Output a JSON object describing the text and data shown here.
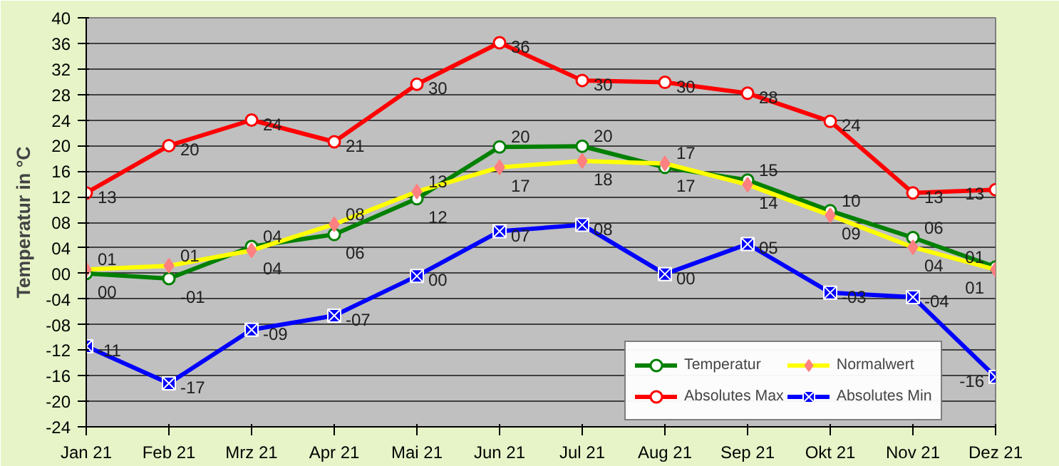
{
  "chart_data": {
    "type": "line",
    "ylabel": "Temperatur in °C",
    "categories": [
      "Jan 21",
      "Feb 21",
      "Mrz 21",
      "Apr 21",
      "Mai 21",
      "Jun 21",
      "Jul 21",
      "Aug 21",
      "Sep 21",
      "Okt 21",
      "Nov 21",
      "Dez 21"
    ],
    "ylim": [
      -24,
      40
    ],
    "yticks": [
      -24,
      -20,
      -16,
      -12,
      {
        "value": -8,
        "label": "-08"
      },
      {
        "value": -4,
        "label": "-04"
      },
      {
        "value": 0,
        "label": "00"
      },
      {
        "value": 4,
        "label": "04"
      },
      {
        "value": 8,
        "label": "08"
      },
      12,
      16,
      20,
      24,
      28,
      32,
      36,
      40
    ],
    "grid": "y",
    "legend": "bottom right",
    "series": [
      {
        "name": "Temperatur",
        "color": "#008000",
        "marker": "circle",
        "values": [
          0,
          -0.8,
          4.2,
          6.1,
          11.7,
          19.8,
          19.9,
          16.6,
          14.6,
          9.8,
          5.6,
          1.0
        ],
        "value_labels": [
          "00",
          "-01",
          "04",
          "06",
          "12",
          "20",
          "20",
          "17",
          "15",
          "10",
          "06",
          "01"
        ]
      },
      {
        "name": "Normalwert",
        "color": "#ffff00",
        "marker": "diamond",
        "values": [
          0.6,
          1.2,
          3.6,
          7.7,
          12.8,
          16.6,
          17.6,
          17.2,
          13.9,
          9.1,
          4.1,
          0.6
        ],
        "value_labels": [
          "01",
          "01",
          "04",
          "08",
          "13",
          "17",
          "18",
          "17",
          "14",
          "09",
          "04",
          "01"
        ]
      },
      {
        "name": "Absolutes Max",
        "color": "#ff0000",
        "marker": "circle",
        "values": [
          12.6,
          20.0,
          24.0,
          20.6,
          29.6,
          36.1,
          30.2,
          29.9,
          28.2,
          23.8,
          12.6,
          13.1
        ],
        "value_labels": [
          "13",
          "20",
          "24",
          "21",
          "30",
          "36",
          "30",
          "30",
          "28",
          "24",
          "13",
          "13"
        ]
      },
      {
        "name": "Absolutes Min",
        "color": "#0000ff",
        "marker": "x",
        "values": [
          -11.4,
          -17.2,
          -8.8,
          -6.6,
          -0.4,
          6.6,
          7.6,
          -0.1,
          4.6,
          -3.0,
          -3.7,
          -16.2
        ],
        "value_labels": [
          "-11",
          "-17",
          "-09",
          "-07",
          "00",
          "07",
          "08",
          "00",
          "05",
          "-03",
          "-04",
          "-16"
        ]
      }
    ]
  }
}
